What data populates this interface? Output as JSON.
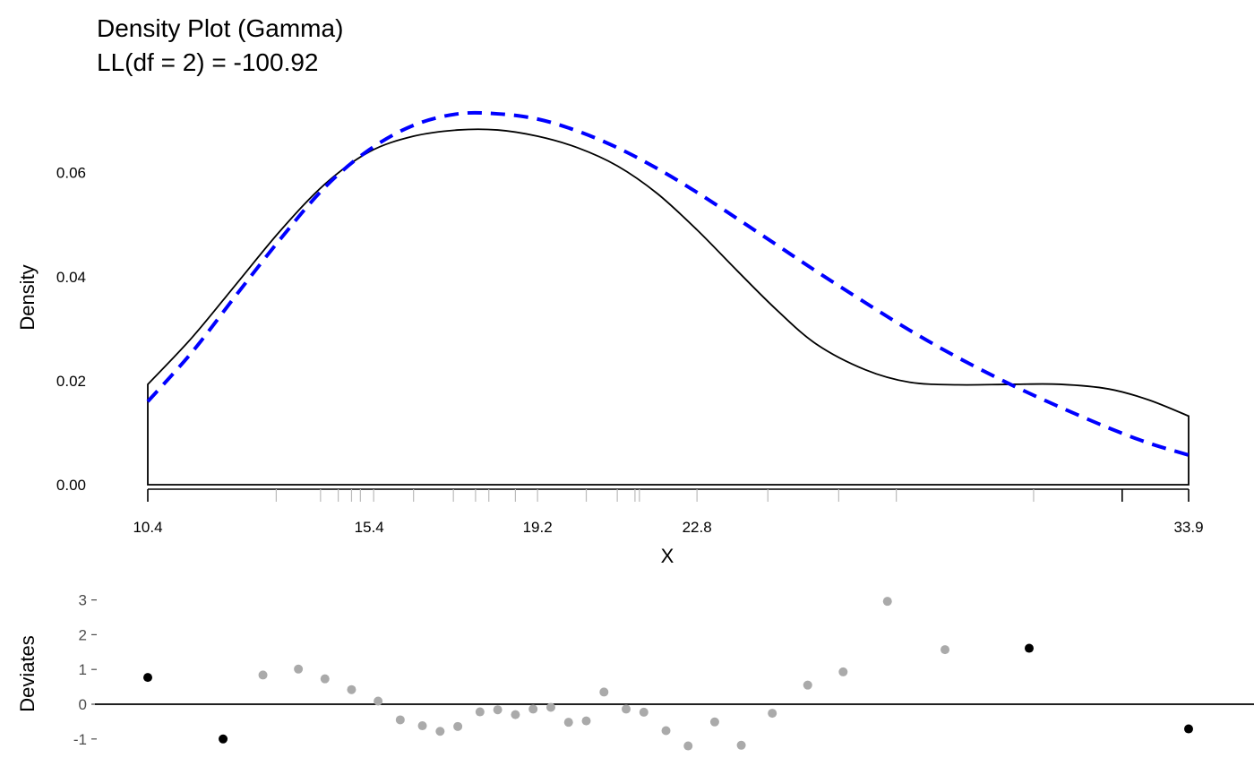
{
  "chart_data": [
    {
      "type": "line",
      "panel": "density",
      "title": "Density Plot (Gamma)",
      "subtitle": "LL(df = 2) = -100.92",
      "xlabel": "X",
      "ylabel": "Density",
      "xlim": [
        10.4,
        33.9
      ],
      "ylim": [
        0,
        0.072
      ],
      "yticks": [
        "0.00",
        "0.02",
        "0.04",
        "0.06"
      ],
      "xticks": [
        "10.4",
        "15.4",
        "19.2",
        "22.8",
        "33.9"
      ],
      "grid": false,
      "series": [
        {
          "style": "solid",
          "color": "#000000",
          "x": [
            10.4,
            11.4,
            12.4,
            13.4,
            14.4,
            15.4,
            16.4,
            17.4,
            18.3,
            19.2,
            20.1,
            21.0,
            21.9,
            22.8,
            23.7,
            24.6,
            25.5,
            26.6,
            27.6,
            28.7,
            29.9,
            31.0,
            32.1,
            33.0,
            33.9
          ],
          "y": [
            0.0193,
            0.0283,
            0.0386,
            0.0489,
            0.0578,
            0.064,
            0.067,
            0.0682,
            0.0682,
            0.067,
            0.0648,
            0.0613,
            0.056,
            0.049,
            0.0412,
            0.0336,
            0.027,
            0.0221,
            0.0197,
            0.0192,
            0.0193,
            0.0193,
            0.0184,
            0.0163,
            0.0132
          ]
        },
        {
          "style": "dashed",
          "color": "#0000ff",
          "x": [
            10.4,
            11.4,
            12.4,
            13.4,
            14.4,
            15.4,
            16.4,
            17.4,
            18.3,
            19.2,
            20.1,
            21.0,
            21.9,
            22.8,
            23.7,
            24.6,
            25.5,
            26.6,
            27.6,
            28.7,
            29.9,
            31.0,
            32.1,
            33.0,
            33.9
          ],
          "y": [
            0.016,
            0.0255,
            0.0365,
            0.0473,
            0.0572,
            0.0644,
            0.0691,
            0.0713,
            0.0713,
            0.0703,
            0.068,
            0.0648,
            0.0608,
            0.0562,
            0.0512,
            0.0461,
            0.041,
            0.035,
            0.0297,
            0.0244,
            0.0192,
            0.0149,
            0.0109,
            0.008,
            0.0057
          ]
        }
      ],
      "rug": [
        10.4,
        13.3,
        14.3,
        14.7,
        15.0,
        15.2,
        15.5,
        16.4,
        17.3,
        17.8,
        18.1,
        18.7,
        19.2,
        20.3,
        21.0,
        21.4,
        21.5,
        22.8,
        24.4,
        26.0,
        27.3,
        30.4,
        32.4,
        33.9
      ],
      "rug_dark": [
        10.4,
        32.4,
        33.9
      ]
    },
    {
      "type": "scatter",
      "panel": "deviates",
      "ylabel": "Deviates",
      "xlim": [
        10.4,
        33.9
      ],
      "ylim": [
        -1,
        3
      ],
      "yticks": [
        "-1",
        "0",
        "1",
        "2",
        "3"
      ],
      "reference_line": 0,
      "points": [
        {
          "x": 10.4,
          "y": 0.77,
          "color": "#000000"
        },
        {
          "x": 12.1,
          "y": -1.0,
          "color": "#000000"
        },
        {
          "x": 13.0,
          "y": 0.84,
          "color": "#aaaaaa"
        },
        {
          "x": 13.8,
          "y": 1.01,
          "color": "#aaaaaa"
        },
        {
          "x": 14.4,
          "y": 0.73,
          "color": "#aaaaaa"
        },
        {
          "x": 15.0,
          "y": 0.42,
          "color": "#aaaaaa"
        },
        {
          "x": 15.6,
          "y": 0.09,
          "color": "#aaaaaa"
        },
        {
          "x": 16.1,
          "y": -0.45,
          "color": "#aaaaaa"
        },
        {
          "x": 16.6,
          "y": -0.62,
          "color": "#aaaaaa"
        },
        {
          "x": 17.0,
          "y": -0.78,
          "color": "#aaaaaa"
        },
        {
          "x": 17.4,
          "y": -0.64,
          "color": "#aaaaaa"
        },
        {
          "x": 17.9,
          "y": -0.22,
          "color": "#aaaaaa"
        },
        {
          "x": 18.3,
          "y": -0.16,
          "color": "#aaaaaa"
        },
        {
          "x": 18.7,
          "y": -0.3,
          "color": "#aaaaaa"
        },
        {
          "x": 19.1,
          "y": -0.14,
          "color": "#aaaaaa"
        },
        {
          "x": 19.5,
          "y": -0.09,
          "color": "#aaaaaa"
        },
        {
          "x": 19.9,
          "y": -0.52,
          "color": "#aaaaaa"
        },
        {
          "x": 20.3,
          "y": -0.48,
          "color": "#aaaaaa"
        },
        {
          "x": 20.7,
          "y": 0.35,
          "color": "#aaaaaa"
        },
        {
          "x": 21.2,
          "y": -0.14,
          "color": "#aaaaaa"
        },
        {
          "x": 21.6,
          "y": -0.23,
          "color": "#aaaaaa"
        },
        {
          "x": 22.1,
          "y": -0.76,
          "color": "#aaaaaa"
        },
        {
          "x": 22.6,
          "y": -1.2,
          "color": "#aaaaaa"
        },
        {
          "x": 23.2,
          "y": -0.51,
          "color": "#aaaaaa"
        },
        {
          "x": 23.8,
          "y": -1.18,
          "color": "#aaaaaa"
        },
        {
          "x": 24.5,
          "y": -0.26,
          "color": "#aaaaaa"
        },
        {
          "x": 25.3,
          "y": 0.55,
          "color": "#aaaaaa"
        },
        {
          "x": 26.1,
          "y": 0.93,
          "color": "#aaaaaa"
        },
        {
          "x": 27.1,
          "y": 2.96,
          "color": "#aaaaaa"
        },
        {
          "x": 28.4,
          "y": 1.57,
          "color": "#aaaaaa"
        },
        {
          "x": 30.3,
          "y": 1.61,
          "color": "#000000"
        },
        {
          "x": 33.9,
          "y": -0.71,
          "color": "#000000"
        }
      ]
    }
  ]
}
